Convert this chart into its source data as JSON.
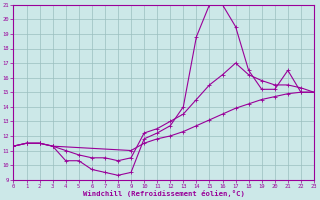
{
  "xlabel": "Windchill (Refroidissement éolien,°C)",
  "bg_color": "#cce8e8",
  "grid_color": "#9bbfbf",
  "line_color": "#990099",
  "xlim": [
    0,
    23
  ],
  "ylim": [
    9,
    21
  ],
  "xticks": [
    0,
    1,
    2,
    3,
    4,
    5,
    6,
    7,
    8,
    9,
    10,
    11,
    12,
    13,
    14,
    15,
    16,
    17,
    18,
    19,
    20,
    21,
    22,
    23
  ],
  "yticks": [
    9,
    10,
    11,
    12,
    13,
    14,
    15,
    16,
    17,
    18,
    19,
    20,
    21
  ],
  "curve1_x": [
    0,
    1,
    2,
    3,
    4,
    5,
    6,
    7,
    8,
    9,
    10,
    11,
    12,
    13,
    14,
    15,
    16,
    17,
    18,
    19,
    20,
    21,
    22,
    23
  ],
  "curve1_y": [
    11.3,
    11.5,
    11.5,
    11.3,
    10.3,
    10.3,
    9.7,
    9.5,
    9.3,
    9.5,
    11.8,
    12.2,
    12.7,
    14.0,
    18.8,
    21.0,
    21.0,
    19.5,
    16.5,
    15.2,
    15.2,
    16.5,
    15.0,
    15.0
  ],
  "curve2_x": [
    0,
    1,
    2,
    3,
    4,
    5,
    6,
    7,
    8,
    9,
    10,
    11,
    12,
    13,
    14,
    15,
    16,
    17,
    18,
    19,
    20,
    21,
    22,
    23
  ],
  "curve2_y": [
    11.3,
    11.5,
    11.5,
    11.3,
    11.0,
    10.7,
    10.5,
    10.5,
    10.3,
    10.5,
    12.2,
    12.5,
    13.0,
    13.5,
    14.5,
    15.5,
    16.2,
    17.0,
    16.2,
    15.8,
    15.5,
    15.5,
    15.3,
    15.0
  ],
  "curve3_x": [
    0,
    1,
    2,
    3,
    9,
    10,
    11,
    12,
    13,
    14,
    15,
    16,
    17,
    18,
    19,
    20,
    21,
    22,
    23
  ],
  "curve3_y": [
    11.3,
    11.5,
    11.5,
    11.3,
    11.0,
    11.5,
    11.8,
    12.0,
    12.3,
    12.7,
    13.1,
    13.5,
    13.9,
    14.2,
    14.5,
    14.7,
    14.9,
    15.0,
    15.0
  ]
}
